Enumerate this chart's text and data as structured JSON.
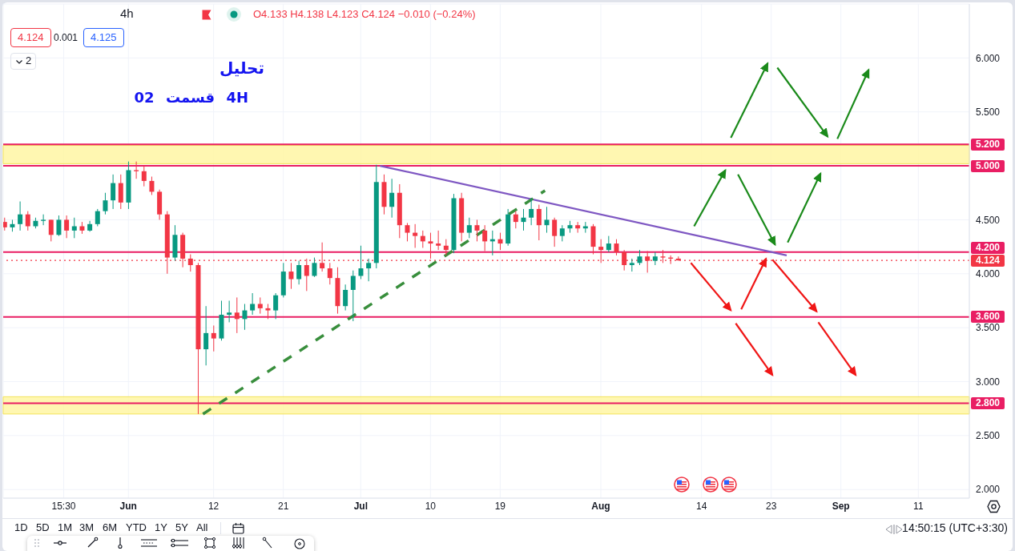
{
  "chart_data": {
    "type": "candlestick",
    "title": "تحلیل",
    "subtitle": "4H قسمت 02",
    "x": [
      "--05-16",
      "--05-17",
      "--05-18",
      "--05-19",
      "--05-20",
      "--05-21",
      "--05-22",
      "--05-23",
      "--05-24",
      "--05-25",
      "--05-26",
      "--05-27",
      "--05-28",
      "--05-29",
      "--05-30",
      "--05-31",
      "--06-01",
      "--06-02",
      "--06-03",
      "--06-04",
      "--06-05",
      "--06-06",
      "--06-07",
      "--06-08",
      "--06-09",
      "--06-10",
      "--06-11",
      "--06-12",
      "--06-13",
      "--06-14",
      "--06-15",
      "--06-16",
      "--06-17",
      "--06-18",
      "--06-19",
      "--06-20",
      "--06-21",
      "--06-22",
      "--06-23",
      "--06-24",
      "--06-25",
      "--06-26",
      "--06-27",
      "--06-28",
      "--06-29",
      "--06-30",
      "--07-01",
      "--07-02",
      "--07-03",
      "--07-04",
      "--07-05",
      "--07-06",
      "--07-07",
      "--07-08",
      "--07-09",
      "--07-10",
      "--07-11",
      "--07-12",
      "--07-13",
      "--07-14",
      "--07-15",
      "--07-16",
      "--07-17",
      "--07-18",
      "--07-19",
      "--07-20",
      "--07-21",
      "--07-22",
      "--07-23",
      "--07-24",
      "--07-25",
      "--07-26",
      "--07-27",
      "--07-28",
      "--07-29",
      "--07-30",
      "--07-31",
      "--08-01",
      "--08-02",
      "--08-03",
      "--08-04",
      "--08-05",
      "--08-06",
      "--08-07",
      "--08-08",
      "--08-09",
      "--08-10",
      "--08-11"
    ],
    "ohlc": [
      [
        4.48,
        4.52,
        4.4,
        4.43
      ],
      [
        4.43,
        4.5,
        4.39,
        4.46
      ],
      [
        4.46,
        4.67,
        4.4,
        4.55
      ],
      [
        4.55,
        4.58,
        4.4,
        4.44
      ],
      [
        4.44,
        4.52,
        4.42,
        4.49
      ],
      [
        4.49,
        4.55,
        4.45,
        4.5
      ],
      [
        4.5,
        4.5,
        4.3,
        4.36
      ],
      [
        4.36,
        4.54,
        4.35,
        4.5
      ],
      [
        4.5,
        4.54,
        4.33,
        4.4
      ],
      [
        4.4,
        4.52,
        4.33,
        4.44
      ],
      [
        4.44,
        4.48,
        4.37,
        4.4
      ],
      [
        4.4,
        4.49,
        4.39,
        4.46
      ],
      [
        4.46,
        4.6,
        4.44,
        4.58
      ],
      [
        4.58,
        4.75,
        4.55,
        4.68
      ],
      [
        4.68,
        4.92,
        4.6,
        4.84
      ],
      [
        4.84,
        4.92,
        4.6,
        4.66
      ],
      [
        4.66,
        5.04,
        4.6,
        4.96
      ],
      [
        4.96,
        5.04,
        4.88,
        4.95
      ],
      [
        4.95,
        5.0,
        4.81,
        4.86
      ],
      [
        4.86,
        4.9,
        4.73,
        4.76
      ],
      [
        4.76,
        4.78,
        4.5,
        4.55
      ],
      [
        4.55,
        4.58,
        4.0,
        4.15
      ],
      [
        4.15,
        4.45,
        4.12,
        4.36
      ],
      [
        4.36,
        4.38,
        4.06,
        4.14
      ],
      [
        4.14,
        4.18,
        4.02,
        4.08
      ],
      [
        4.08,
        4.1,
        2.7,
        3.3
      ],
      [
        3.3,
        3.7,
        3.15,
        3.45
      ],
      [
        3.45,
        3.52,
        3.28,
        3.4
      ],
      [
        3.4,
        3.75,
        3.38,
        3.62
      ],
      [
        3.62,
        3.75,
        3.55,
        3.64
      ],
      [
        3.64,
        3.78,
        3.45,
        3.58
      ],
      [
        3.58,
        3.72,
        3.48,
        3.66
      ],
      [
        3.66,
        3.82,
        3.62,
        3.72
      ],
      [
        3.72,
        3.78,
        3.63,
        3.68
      ],
      [
        3.68,
        3.72,
        3.58,
        3.66
      ],
      [
        3.66,
        3.82,
        3.58,
        3.8
      ],
      [
        3.8,
        4.1,
        3.78,
        4.02
      ],
      [
        4.02,
        4.1,
        3.86,
        3.95
      ],
      [
        3.95,
        4.12,
        3.9,
        4.08
      ],
      [
        4.08,
        4.14,
        3.84,
        3.98
      ],
      [
        3.98,
        4.15,
        3.97,
        4.1
      ],
      [
        4.1,
        4.29,
        4.02,
        4.05
      ],
      [
        4.05,
        4.1,
        3.9,
        3.96
      ],
      [
        3.96,
        4.06,
        3.63,
        3.7
      ],
      [
        3.7,
        3.9,
        3.66,
        3.85
      ],
      [
        3.85,
        4.03,
        3.56,
        3.98
      ],
      [
        3.98,
        4.26,
        3.95,
        4.05
      ],
      [
        4.05,
        4.14,
        3.93,
        4.1
      ],
      [
        4.1,
        5.01,
        4.05,
        4.85
      ],
      [
        4.85,
        4.92,
        4.55,
        4.62
      ],
      [
        4.62,
        4.88,
        4.52,
        4.75
      ],
      [
        4.75,
        4.83,
        4.33,
        4.45
      ],
      [
        4.45,
        4.47,
        4.3,
        4.38
      ],
      [
        4.38,
        4.46,
        4.24,
        4.35
      ],
      [
        4.35,
        4.4,
        4.24,
        4.3
      ],
      [
        4.3,
        4.38,
        4.14,
        4.28
      ],
      [
        4.28,
        4.4,
        4.22,
        4.26
      ],
      [
        4.26,
        4.32,
        4.17,
        4.22
      ],
      [
        4.22,
        4.74,
        4.19,
        4.7
      ],
      [
        4.7,
        4.75,
        4.3,
        4.38
      ],
      [
        4.38,
        4.52,
        4.33,
        4.45
      ],
      [
        4.45,
        4.5,
        4.3,
        4.4
      ],
      [
        4.4,
        4.45,
        4.21,
        4.3
      ],
      [
        4.3,
        4.4,
        4.17,
        4.32
      ],
      [
        4.32,
        4.38,
        4.22,
        4.28
      ],
      [
        4.28,
        4.6,
        4.26,
        4.55
      ],
      [
        4.55,
        4.58,
        4.42,
        4.48
      ],
      [
        4.48,
        4.6,
        4.4,
        4.52
      ],
      [
        4.52,
        4.7,
        4.45,
        4.6
      ],
      [
        4.6,
        4.64,
        4.31,
        4.45
      ],
      [
        4.45,
        4.62,
        4.38,
        4.5
      ],
      [
        4.5,
        4.52,
        4.25,
        4.35
      ],
      [
        4.35,
        4.45,
        4.3,
        4.42
      ],
      [
        4.42,
        4.49,
        4.38,
        4.45
      ],
      [
        4.45,
        4.48,
        4.38,
        4.42
      ],
      [
        4.42,
        4.48,
        4.38,
        4.44
      ],
      [
        4.44,
        4.46,
        4.18,
        4.25
      ],
      [
        4.25,
        4.32,
        4.1,
        4.22
      ],
      [
        4.22,
        4.35,
        4.2,
        4.28
      ],
      [
        4.28,
        4.32,
        4.17,
        4.2
      ],
      [
        4.2,
        4.22,
        4.03,
        4.08
      ],
      [
        4.08,
        4.14,
        4.02,
        4.1
      ],
      [
        4.1,
        4.22,
        4.08,
        4.16
      ],
      [
        4.16,
        4.21,
        4.01,
        4.12
      ],
      [
        4.12,
        4.2,
        4.08,
        4.16
      ],
      [
        4.16,
        4.22,
        4.1,
        4.15
      ],
      [
        4.15,
        4.17,
        4.09,
        4.14
      ],
      [
        4.14,
        4.16,
        4.12,
        4.124
      ]
    ],
    "series": [
      {
        "type": "line",
        "x": [
          "--07-03T12:00",
          "--08-25T00:00"
        ],
        "values": [
          5.0,
          4.17
        ],
        "color": "#7e57c2"
      },
      {
        "type": "line",
        "x": [
          "--06-10T15:00",
          "--07-24T19:00"
        ],
        "values": [
          2.7,
          4.77
        ],
        "color": "#388e3c",
        "line_style": "dashed"
      },
      {
        "type": "line",
        "x": [
          "--08-13T01:00",
          "--08-17T02:00"
        ],
        "values": [
          4.44,
          4.96
        ],
        "color": "#1a8a1a"
      },
      {
        "type": "line",
        "x": [
          "--08-18T17:00",
          "--08-23T12:00"
        ],
        "values": [
          4.92,
          4.27
        ],
        "color": "#1a8a1a"
      },
      {
        "type": "line",
        "x": [
          "--08-25T03:00",
          "--08-29T09:00"
        ],
        "values": [
          4.29,
          4.93
        ],
        "color": "#1a8a1a"
      },
      {
        "type": "line",
        "x": [
          "--08-17T19:00",
          "--08-22T13:00"
        ],
        "values": [
          5.26,
          5.95
        ],
        "color": "#1a8a1a"
      },
      {
        "type": "line",
        "x": [
          "--08-23T19:00",
          "--08-30T07:00"
        ],
        "values": [
          5.91,
          5.27
        ],
        "color": "#1a8a1a"
      },
      {
        "type": "line",
        "x": [
          "--08-31T13:00",
          "--09-04T14:00"
        ],
        "values": [
          5.25,
          5.89
        ],
        "color": "#1a8a1a"
      },
      {
        "type": "line",
        "x": [
          "--08-12T15:00",
          "--08-17T19:00"
        ],
        "values": [
          4.1,
          3.66
        ],
        "color": "#f01616"
      },
      {
        "type": "line",
        "x": [
          "--08-19T03:00",
          "--08-22T08:00"
        ],
        "values": [
          3.67,
          4.14
        ],
        "color": "#f01616"
      },
      {
        "type": "line",
        "x": [
          "--08-23T04:00",
          "--08-28T21:00"
        ],
        "values": [
          4.13,
          3.65
        ],
        "color": "#f01616"
      },
      {
        "type": "line",
        "x": [
          "--08-18T10:00",
          "--08-23T04:00"
        ],
        "values": [
          3.54,
          3.06
        ],
        "color": "#f01616"
      },
      {
        "type": "line",
        "x": [
          "--08-29T02:00",
          "--09-02T22:00"
        ],
        "values": [
          3.55,
          3.06
        ],
        "color": "#f01616"
      }
    ],
    "xlim": [
      "--05-15T20:00",
      "--09-17T14:00"
    ],
    "xticks": [
      {
        "value": "--05-23T15:30",
        "label": "15:30"
      },
      {
        "value": "--06-01",
        "label": "Jun"
      },
      {
        "value": "--06-12",
        "label": "12"
      },
      {
        "value": "--06-21",
        "label": "21"
      },
      {
        "value": "--07-01",
        "label": "Jul"
      },
      {
        "value": "--07-10",
        "label": "10"
      },
      {
        "value": "--07-19",
        "label": "19"
      },
      {
        "value": "--08-01",
        "label": "Aug"
      },
      {
        "value": "--08-14",
        "label": "14"
      },
      {
        "value": "--08-23",
        "label": "23"
      },
      {
        "value": "--09-01",
        "label": "Sep"
      },
      {
        "value": "--09-11",
        "label": "11"
      }
    ],
    "ylim": [
      1.92,
      6.5
    ],
    "yticks": [
      {
        "value": 2,
        "label": "2.000"
      },
      {
        "value": 2.5,
        "label": "2.500"
      },
      {
        "value": 3,
        "label": "3.000"
      },
      {
        "value": 3.5,
        "label": "3.500"
      },
      {
        "value": 4,
        "label": "4.000"
      },
      {
        "value": 4.5,
        "label": "4.500"
      },
      {
        "value": 5.5,
        "label": "5.500"
      },
      {
        "value": 6,
        "label": "6.000"
      }
    ],
    "grid": true,
    "bands": [
      {
        "axis": "y",
        "from": 5.02,
        "to": 5.19,
        "color": "#fff59d"
      },
      {
        "axis": "y",
        "from": 2.7,
        "to": 2.86,
        "color": "#fff59d"
      }
    ],
    "ref_lines": [
      {
        "axis": "y",
        "value": 5.2,
        "label": "5.200",
        "color": "#e91e63"
      },
      {
        "axis": "y",
        "value": 5.0,
        "label": "5.000",
        "color": "#e91e63"
      },
      {
        "axis": "y",
        "value": 4.2,
        "label": "4.200",
        "color": "#e91e63"
      },
      {
        "axis": "y",
        "value": 3.6,
        "label": "3.600",
        "color": "#e91e63"
      },
      {
        "axis": "y",
        "value": 2.8,
        "label": "2.800",
        "color": "#e91e63"
      },
      {
        "axis": "y",
        "value": 4.124,
        "label": "4.124",
        "color": "#f23645",
        "line_style": "dotted"
      }
    ],
    "annotations": [
      "4h",
      "O4.133 H4.138 L4.123 C4.124 −0.010 (−0.24%)",
      "4.124",
      "0.001",
      "4.125",
      "2",
      "1D",
      "5D",
      "1M",
      "3M",
      "6M",
      "YTD",
      "1Y",
      "5Y",
      "All",
      "14:50:15 (UTC+3:30)"
    ]
  }
}
